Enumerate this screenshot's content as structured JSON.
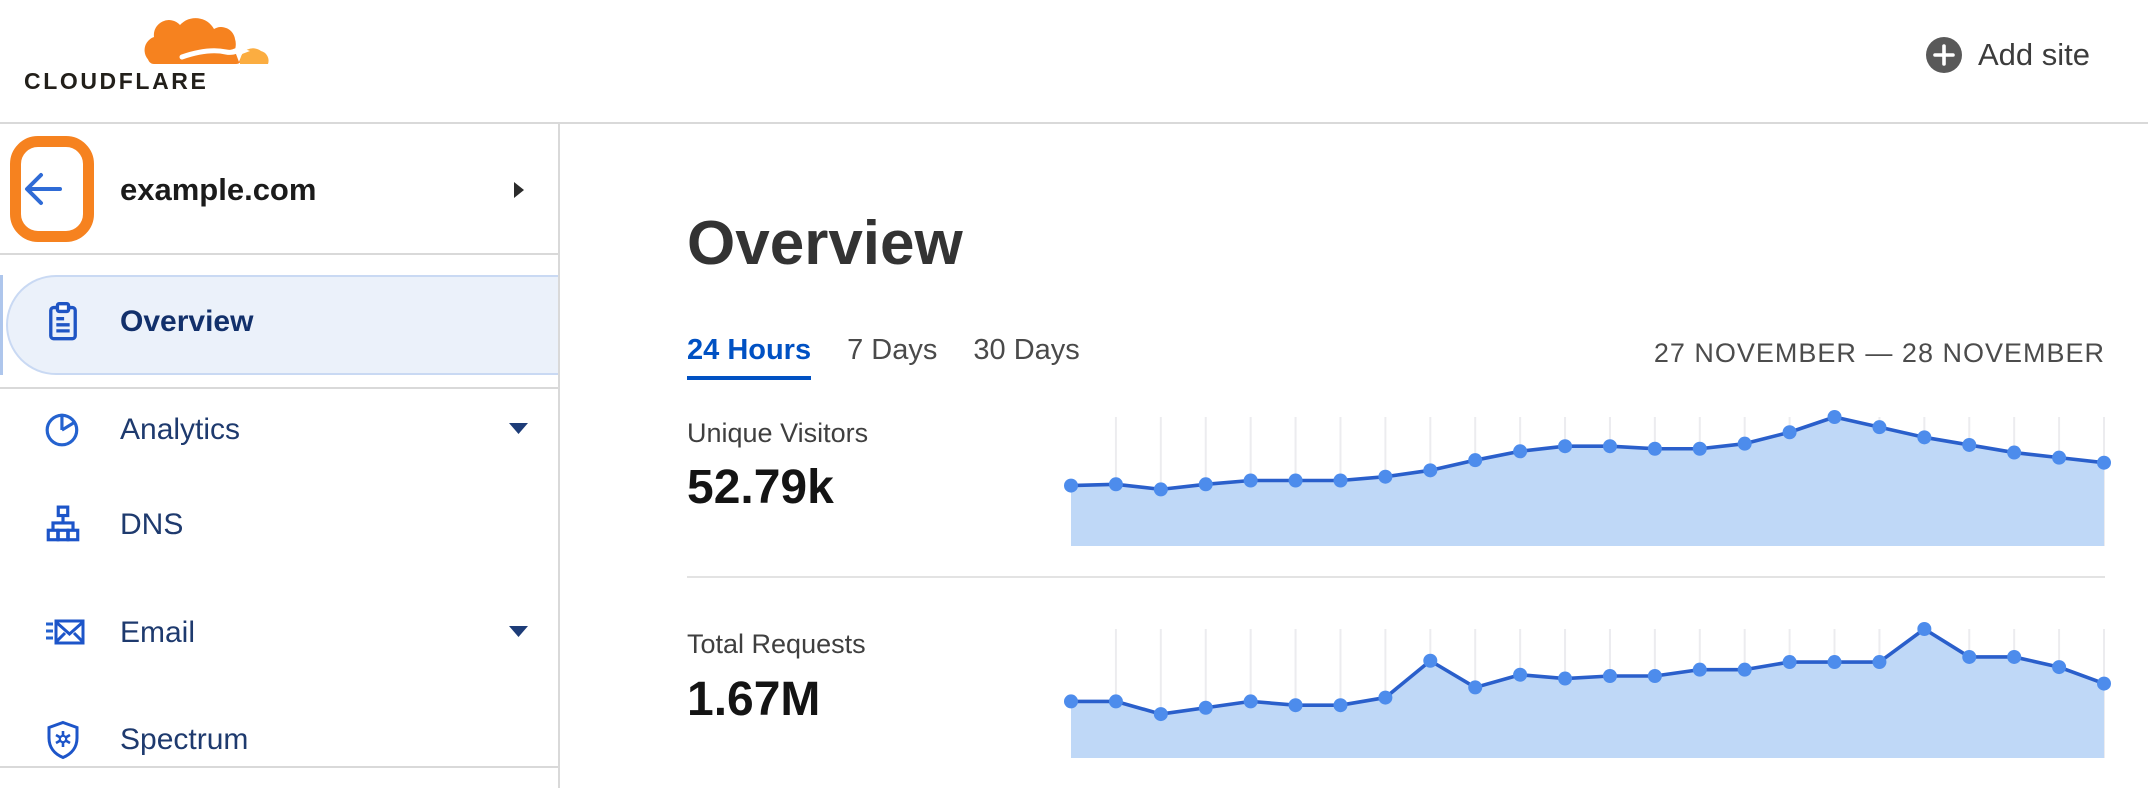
{
  "header": {
    "logo_text": "CLOUDFLARE",
    "add_site_label": "Add site"
  },
  "sidebar": {
    "site_name": "example.com",
    "items": [
      {
        "label": "Overview",
        "icon": "clipboard-icon",
        "selected": true,
        "has_caret": false
      },
      {
        "label": "Analytics",
        "icon": "pie-chart-icon",
        "selected": false,
        "has_caret": true
      },
      {
        "label": "DNS",
        "icon": "network-tree-icon",
        "selected": false,
        "has_caret": false
      },
      {
        "label": "Email",
        "icon": "envelope-icon",
        "selected": false,
        "has_caret": true
      },
      {
        "label": "Spectrum",
        "icon": "shield-asterisk-icon",
        "selected": false,
        "has_caret": false
      }
    ]
  },
  "main": {
    "title": "Overview",
    "tabs": [
      {
        "label": "24 Hours",
        "active": true
      },
      {
        "label": "7 Days",
        "active": false
      },
      {
        "label": "30 Days",
        "active": false
      }
    ],
    "date_range": "27 NOVEMBER — 28 NOVEMBER",
    "metrics": [
      {
        "label": "Unique Visitors",
        "value": "52.79k"
      },
      {
        "label": "Total Requests",
        "value": "1.67M"
      }
    ]
  },
  "colors": {
    "brand_orange": "#F6821F",
    "brand_orange_light": "#FBAD41",
    "link_blue": "#0051C3",
    "nav_navy": "#1E3A6E",
    "selected_pill_bg": "#EBF1FA",
    "selected_pill_border": "#C9D9F3",
    "divider": "#D9D9D9"
  },
  "chart_data": [
    {
      "type": "area",
      "title": "Unique Visitors",
      "total": "52.79k",
      "points": 24,
      "x_axis": "time over 24 hours, 27–28 November (no tick labels shown)",
      "y_axis": "unique visitors (axis unlabeled)",
      "note": "values are relative heights in % of series max, estimated from pixels",
      "values_pct": [
        46,
        47,
        43,
        47,
        50,
        50,
        50,
        53,
        58,
        66,
        73,
        77,
        77,
        75,
        75,
        79,
        88,
        100,
        92,
        84,
        78,
        72,
        68,
        64
      ],
      "legend": "none",
      "grid": "vertical light gridlines at each point",
      "style": {
        "line": "#2A5FCB",
        "marker": "#4D8CEC",
        "fill": "#BFD8F7",
        "grid": "#ECECEF"
      }
    },
    {
      "type": "area",
      "title": "Total Requests",
      "total": "1.67M",
      "points": 24,
      "x_axis": "time over 24 hours, 27–28 November (no tick labels shown)",
      "y_axis": "requests (axis unlabeled)",
      "note": "values are relative heights in % of series max, estimated from pixels",
      "values_pct": [
        43,
        43,
        33,
        38,
        43,
        40,
        40,
        46,
        75,
        54,
        64,
        61,
        63,
        63,
        68,
        68,
        74,
        74,
        74,
        100,
        78,
        78,
        70,
        57
      ],
      "legend": "none",
      "grid": "vertical light gridlines at each point",
      "style": {
        "line": "#2A5FCB",
        "marker": "#4D8CEC",
        "fill": "#BFD8F7",
        "grid": "#ECECEF"
      }
    }
  ]
}
